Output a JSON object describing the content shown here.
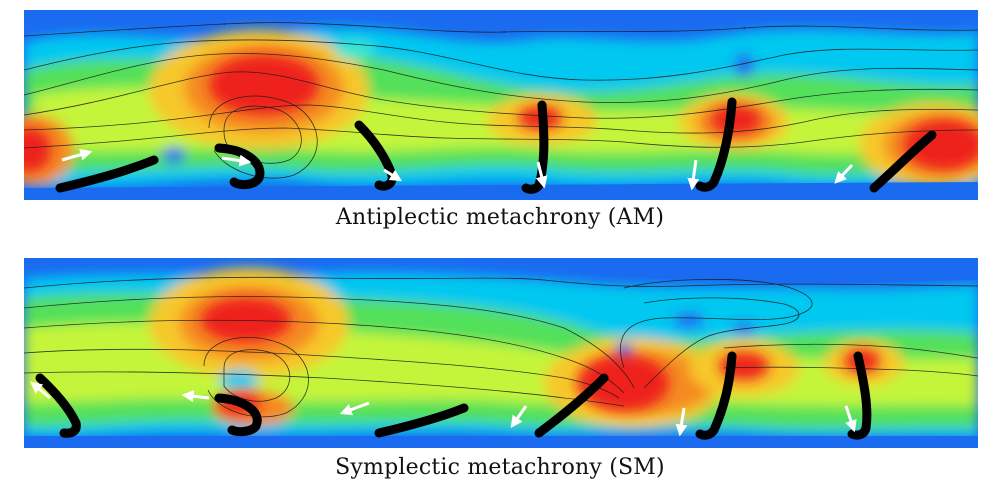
{
  "panels": [
    {
      "id": "am",
      "caption": "Antiplectic metachrony (AM)"
    },
    {
      "id": "sm",
      "caption": "Symplectic metachrony (SM)"
    }
  ],
  "colormap": {
    "low": "#1a6bf0",
    "cyan": "#00c8f0",
    "aqua": "#38e6d0",
    "green": "#52e05a",
    "lime": "#c4f53a",
    "yellow": "#f6c82a",
    "orange": "#f58a22",
    "high": "#ee1a1a"
  },
  "styles": {
    "cilium_color": "#000000",
    "streamline_color": "#1a1a1a",
    "velocity_arrow_color": "#ffffff"
  }
}
